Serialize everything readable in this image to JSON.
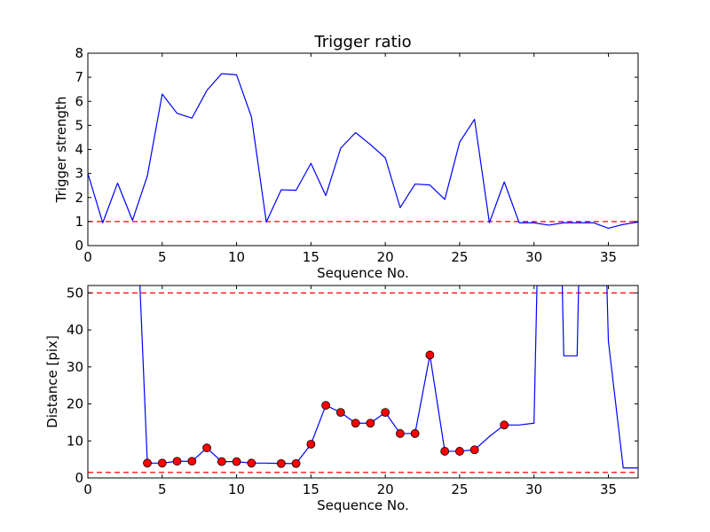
{
  "chart_data": [
    {
      "type": "line",
      "title": "Trigger ratio",
      "xlabel": "Sequence No.",
      "ylabel": "Trigger strength",
      "xlim": [
        0,
        37
      ],
      "ylim": [
        0,
        8
      ],
      "xticks": [
        0,
        5,
        10,
        15,
        20,
        25,
        30,
        35
      ],
      "yticks": [
        0,
        1,
        2,
        3,
        4,
        5,
        6,
        7,
        8
      ],
      "grid": false,
      "series": [
        {
          "color": "#0000ff",
          "style": "line",
          "x": [
            0,
            1,
            2,
            3,
            4,
            5,
            6,
            7,
            8,
            9,
            10,
            11,
            12,
            13,
            14,
            15,
            16,
            17,
            18,
            19,
            20,
            21,
            22,
            23,
            24,
            25,
            26,
            27,
            28,
            29,
            30,
            31,
            32,
            33,
            34,
            35,
            36,
            37
          ],
          "y": [
            3.0,
            0.95,
            2.6,
            1.05,
            2.9,
            6.3,
            5.5,
            5.3,
            6.45,
            7.15,
            7.1,
            5.35,
            0.98,
            2.32,
            2.3,
            3.42,
            2.08,
            4.05,
            4.7,
            4.2,
            3.65,
            1.58,
            2.56,
            2.52,
            1.92,
            4.3,
            5.25,
            0.95,
            2.65,
            0.95,
            0.95,
            0.85,
            0.95,
            0.95,
            0.95,
            0.72,
            0.88,
            0.98
          ]
        }
      ],
      "reference_lines": [
        {
          "y": 1.0,
          "color": "#ff0000",
          "style": "dashed"
        }
      ]
    },
    {
      "type": "line",
      "title": "",
      "xlabel": "Sequence No.",
      "ylabel": "Distance [pix]",
      "xlim": [
        0,
        37
      ],
      "ylim": [
        0,
        52
      ],
      "xticks": [
        0,
        5,
        10,
        15,
        20,
        25,
        30,
        35
      ],
      "yticks": [
        0,
        10,
        20,
        30,
        40,
        50
      ],
      "grid": false,
      "series": [
        {
          "color": "#0000ff",
          "style": "line",
          "x": [
            3.5,
            4,
            5,
            6,
            7,
            8,
            9,
            10,
            11,
            12,
            13,
            14,
            15,
            16,
            17,
            18,
            19,
            20,
            21,
            22,
            23,
            24,
            25,
            26,
            27,
            28,
            29,
            30,
            30.2,
            31.9,
            32,
            32.9,
            33,
            34.9,
            35,
            36,
            37
          ],
          "y": [
            52,
            4.0,
            4.0,
            4.5,
            4.5,
            8.1,
            4.4,
            4.4,
            4.0,
            4.0,
            3.9,
            3.9,
            9.1,
            19.6,
            17.7,
            14.8,
            14.8,
            17.7,
            12.0,
            12.0,
            33.2,
            7.2,
            7.2,
            7.6,
            11.2,
            14.3,
            14.3,
            14.8,
            52,
            52,
            33.0,
            33.0,
            52,
            52,
            37.0,
            2.7,
            2.7
          ]
        },
        {
          "color": "#ff0000",
          "style": "markers",
          "x": [
            4,
            5,
            6,
            7,
            8,
            9,
            10,
            11,
            13,
            14,
            15,
            16,
            17,
            18,
            19,
            20,
            21,
            22,
            23,
            24,
            25,
            26,
            28
          ],
          "y": [
            4.0,
            4.0,
            4.5,
            4.5,
            8.1,
            4.4,
            4.4,
            4.0,
            3.9,
            3.9,
            9.1,
            19.6,
            17.7,
            14.8,
            14.8,
            17.7,
            12.0,
            12.0,
            33.2,
            7.2,
            7.2,
            7.6,
            14.3
          ]
        }
      ],
      "reference_lines": [
        {
          "y": 50,
          "color": "#ff0000",
          "style": "dashed"
        },
        {
          "y": 1.5,
          "color": "#ff0000",
          "style": "dashed"
        }
      ]
    }
  ]
}
